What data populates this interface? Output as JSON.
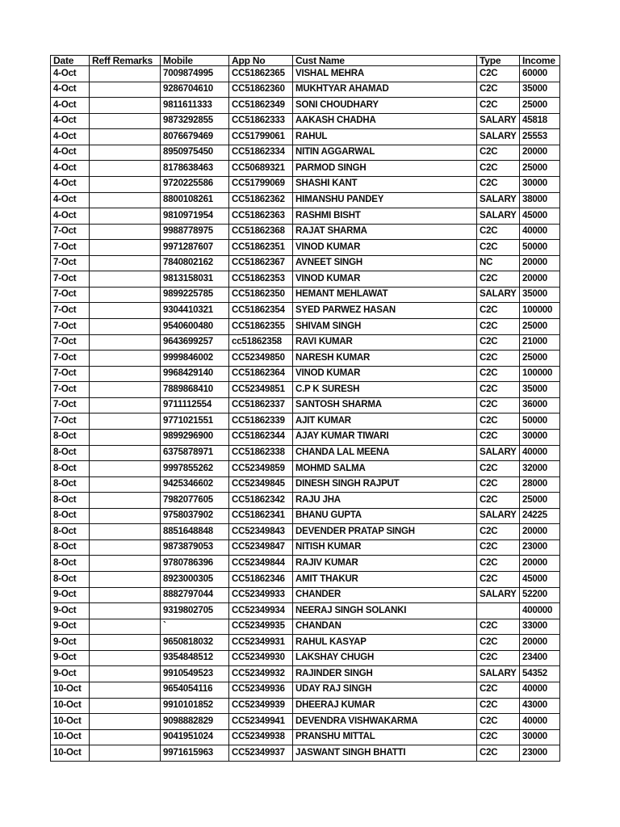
{
  "page": {
    "background_color": "#ffffff",
    "text_color": "#0a0a0a",
    "border_color": "#111111"
  },
  "table": {
    "columns": [
      "Date",
      "Reff Remarks",
      "Mobile",
      "App No",
      "Cust Name",
      "Type",
      "Income"
    ],
    "rows": [
      {
        "date": "4-Oct",
        "reff_remarks": "",
        "mobile": "7009874995",
        "app_no": "CC51862365",
        "cust_name": "VISHAL MEHRA",
        "type": "C2C",
        "income": "60000"
      },
      {
        "date": "4-Oct",
        "reff_remarks": "",
        "mobile": "9286704610",
        "app_no": "CC51862360",
        "cust_name": "MUKHTYAR AHAMAD",
        "type": "C2C",
        "income": "35000"
      },
      {
        "date": "4-Oct",
        "reff_remarks": "",
        "mobile": "9811611333",
        "app_no": "CC51862349",
        "cust_name": "SONI CHOUDHARY",
        "type": "C2C",
        "income": "25000"
      },
      {
        "date": "4-Oct",
        "reff_remarks": "",
        "mobile": "9873292855",
        "app_no": "CC51862333",
        "cust_name": "AAKASH CHADHA",
        "type": "SALARY",
        "income": "45818"
      },
      {
        "date": "4-Oct",
        "reff_remarks": "",
        "mobile": "8076679469",
        "app_no": "CC51799061",
        "cust_name": "RAHUL",
        "type": "SALARY",
        "income": "25553"
      },
      {
        "date": "4-Oct",
        "reff_remarks": "",
        "mobile": "8950975450",
        "app_no": "CC51862334",
        "cust_name": "NITIN AGGARWAL",
        "type": "C2C",
        "income": "20000"
      },
      {
        "date": "4-Oct",
        "reff_remarks": "",
        "mobile": "8178638463",
        "app_no": "CC50689321",
        "cust_name": "PARMOD SINGH",
        "type": "C2C",
        "income": "25000"
      },
      {
        "date": "4-Oct",
        "reff_remarks": "",
        "mobile": "9720225586",
        "app_no": "CC51799069",
        "cust_name": "SHASHI KANT",
        "type": "C2C",
        "income": "30000"
      },
      {
        "date": "4-Oct",
        "reff_remarks": "",
        "mobile": "8800108261",
        "app_no": "CC51862362",
        "cust_name": "HIMANSHU PANDEY",
        "type": "SALARY",
        "income": "38000"
      },
      {
        "date": "4-Oct",
        "reff_remarks": "",
        "mobile": "9810971954",
        "app_no": "CC51862363",
        "cust_name": "RASHMI BISHT",
        "type": "SALARY",
        "income": "45000"
      },
      {
        "date": "7-Oct",
        "reff_remarks": "",
        "mobile": "9988778975",
        "app_no": "CC51862368",
        "cust_name": "RAJAT SHARMA",
        "type": "C2C",
        "income": "40000"
      },
      {
        "date": "7-Oct",
        "reff_remarks": "",
        "mobile": "9971287607",
        "app_no": "CC51862351",
        "cust_name": "VINOD KUMAR",
        "type": "C2C",
        "income": "50000"
      },
      {
        "date": "7-Oct",
        "reff_remarks": "",
        "mobile": "7840802162",
        "app_no": "CC51862367",
        "cust_name": "AVNEET SINGH",
        "type": "NC",
        "income": "20000"
      },
      {
        "date": "7-Oct",
        "reff_remarks": "",
        "mobile": "9813158031",
        "app_no": "CC51862353",
        "cust_name": "VINOD KUMAR",
        "type": "C2C",
        "income": "20000"
      },
      {
        "date": "7-Oct",
        "reff_remarks": "",
        "mobile": "9899225785",
        "app_no": "CC51862350",
        "cust_name": "HEMANT MEHLAWAT",
        "type": "SALARY",
        "income": "35000"
      },
      {
        "date": "7-Oct",
        "reff_remarks": "",
        "mobile": "9304410321",
        "app_no": "CC51862354",
        "cust_name": "SYED PARWEZ HASAN",
        "type": "C2C",
        "income": "100000"
      },
      {
        "date": "7-Oct",
        "reff_remarks": "",
        "mobile": "9540600480",
        "app_no": "CC51862355",
        "cust_name": "SHIVAM SINGH",
        "type": "C2C",
        "income": "25000"
      },
      {
        "date": "7-Oct",
        "reff_remarks": "",
        "mobile": "9643699257",
        "app_no": "cc51862358",
        "cust_name": "RAVI KUMAR",
        "type": "C2C",
        "income": "21000"
      },
      {
        "date": "7-Oct",
        "reff_remarks": "",
        "mobile": "9999846002",
        "app_no": "CC52349850",
        "cust_name": "NARESH KUMAR",
        "type": "C2C",
        "income": "25000"
      },
      {
        "date": "7-Oct",
        "reff_remarks": "",
        "mobile": "9968429140",
        "app_no": "CC51862364",
        "cust_name": "VINOD KUMAR",
        "type": "C2C",
        "income": "100000"
      },
      {
        "date": "7-Oct",
        "reff_remarks": "",
        "mobile": "7889868410",
        "app_no": "CC52349851",
        "cust_name": "C.P K SURESH",
        "type": "C2C",
        "income": "35000"
      },
      {
        "date": "7-Oct",
        "reff_remarks": "",
        "mobile": "9711112554",
        "app_no": "CC51862337",
        "cust_name": "SANTOSH SHARMA",
        "type": "C2C",
        "income": "36000"
      },
      {
        "date": "7-Oct",
        "reff_remarks": "",
        "mobile": "9771021551",
        "app_no": "CC51862339",
        "cust_name": "AJIT KUMAR",
        "type": "C2C",
        "income": "50000"
      },
      {
        "date": "8-Oct",
        "reff_remarks": "",
        "mobile": "9899296900",
        "app_no": "CC51862344",
        "cust_name": "AJAY KUMAR TIWARI",
        "type": "C2C",
        "income": "30000"
      },
      {
        "date": "8-Oct",
        "reff_remarks": "",
        "mobile": "6375878971",
        "app_no": "CC51862338",
        "cust_name": "CHANDA LAL MEENA",
        "type": "SALARY",
        "income": "40000"
      },
      {
        "date": "8-Oct",
        "reff_remarks": "",
        "mobile": "9997855262",
        "app_no": "CC52349859",
        "cust_name": "MOHMD SALMA",
        "type": "C2C",
        "income": "32000"
      },
      {
        "date": "8-Oct",
        "reff_remarks": "",
        "mobile": "9425346602",
        "app_no": "CC52349845",
        "cust_name": "DINESH SINGH RAJPUT",
        "type": "C2C",
        "income": "28000"
      },
      {
        "date": "8-Oct",
        "reff_remarks": "",
        "mobile": "7982077605",
        "app_no": "CC51862342",
        "cust_name": "RAJU JHA",
        "type": "C2C",
        "income": "25000"
      },
      {
        "date": "8-Oct",
        "reff_remarks": "",
        "mobile": "9758037902",
        "app_no": "CC51862341",
        "cust_name": "BHANU GUPTA",
        "type": "SALARY",
        "income": "24225"
      },
      {
        "date": "8-Oct",
        "reff_remarks": "",
        "mobile": "8851648848",
        "app_no": "CC52349843",
        "cust_name": "DEVENDER PRATAP SINGH",
        "type": "C2C",
        "income": "20000"
      },
      {
        "date": "8-Oct",
        "reff_remarks": "",
        "mobile": "9873879053",
        "app_no": "CC52349847",
        "cust_name": "NITISH KUMAR",
        "type": "C2C",
        "income": "23000"
      },
      {
        "date": "8-Oct",
        "reff_remarks": "",
        "mobile": "9780786396",
        "app_no": "CC52349844",
        "cust_name": "RAJIV KUMAR",
        "type": "C2C",
        "income": "20000"
      },
      {
        "date": "8-Oct",
        "reff_remarks": "",
        "mobile": "8923000305",
        "app_no": "CC51862346",
        "cust_name": "AMIT THAKUR",
        "type": "C2C",
        "income": "45000"
      },
      {
        "date": "9-Oct",
        "reff_remarks": "",
        "mobile": "8882797044",
        "app_no": "CC52349933",
        "cust_name": "CHANDER",
        "type": "SALARY",
        "income": "52200"
      },
      {
        "date": "9-Oct",
        "reff_remarks": "",
        "mobile": "9319802705",
        "app_no": "CC52349934",
        "cust_name": "NEERAJ SINGH SOLANKI",
        "type": "",
        "income": "400000"
      },
      {
        "date": "9-Oct",
        "reff_remarks": "",
        "mobile": "`",
        "app_no": "CC52349935",
        "cust_name": "CHANDAN",
        "type": "C2C",
        "income": "33000"
      },
      {
        "date": "9-Oct",
        "reff_remarks": "",
        "mobile": "9650818032",
        "app_no": "CC52349931",
        "cust_name": "RAHUL KASYAP",
        "type": "C2C",
        "income": "20000"
      },
      {
        "date": "9-Oct",
        "reff_remarks": "",
        "mobile": "9354848512",
        "app_no": "CC52349930",
        "cust_name": "LAKSHAY CHUGH",
        "type": "C2C",
        "income": "23400"
      },
      {
        "date": "9-Oct",
        "reff_remarks": "",
        "mobile": "9910549523",
        "app_no": "CC52349932",
        "cust_name": "RAJINDER SINGH",
        "type": "SALARY",
        "income": "54352"
      },
      {
        "date": "10-Oct",
        "reff_remarks": "",
        "mobile": "9654054116",
        "app_no": "CC52349936",
        "cust_name": "UDAY RAJ SINGH",
        "type": "C2C",
        "income": "40000"
      },
      {
        "date": "10-Oct",
        "reff_remarks": "",
        "mobile": "9910101852",
        "app_no": "CC52349939",
        "cust_name": "DHEERAJ KUMAR",
        "type": "C2C",
        "income": "43000"
      },
      {
        "date": "10-Oct",
        "reff_remarks": "",
        "mobile": "9098882829",
        "app_no": "CC52349941",
        "cust_name": "DEVENDRA VISHWAKARMA",
        "type": "C2C",
        "income": "40000"
      },
      {
        "date": "10-Oct",
        "reff_remarks": "",
        "mobile": "9041951024",
        "app_no": "CC52349938",
        "cust_name": "PRANSHU MITTAL",
        "type": "C2C",
        "income": "30000"
      },
      {
        "date": "10-Oct",
        "reff_remarks": "",
        "mobile": "9971615963",
        "app_no": "CC52349937",
        "cust_name": "JASWANT SINGH BHATTI",
        "type": "C2C",
        "income": "23000"
      }
    ]
  }
}
